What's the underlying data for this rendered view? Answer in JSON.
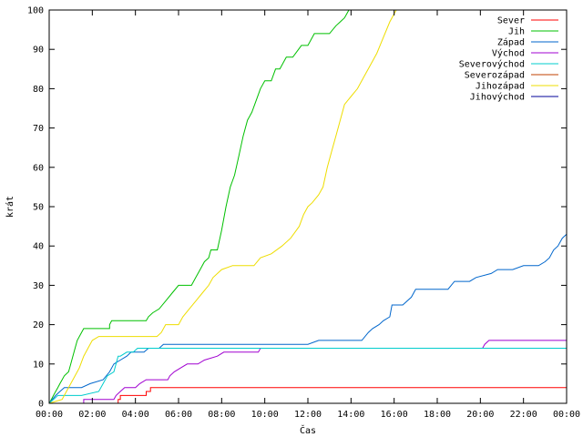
{
  "chart_data": {
    "type": "line",
    "xlabel": "Čas",
    "ylabel": "krát",
    "ylim": [
      0,
      100
    ],
    "xlim": [
      0,
      24
    ],
    "y_ticks": [
      0,
      10,
      20,
      30,
      40,
      50,
      60,
      70,
      80,
      90,
      100
    ],
    "x_ticks": [
      {
        "v": 0,
        "label": "00:00"
      },
      {
        "v": 2,
        "label": "02:00"
      },
      {
        "v": 4,
        "label": "04:00"
      },
      {
        "v": 6,
        "label": "06:00"
      },
      {
        "v": 8,
        "label": "08:00"
      },
      {
        "v": 10,
        "label": "10:00"
      },
      {
        "v": 12,
        "label": "12:00"
      },
      {
        "v": 14,
        "label": "14:00"
      },
      {
        "v": 16,
        "label": "16:00"
      },
      {
        "v": 18,
        "label": "18:00"
      },
      {
        "v": 20,
        "label": "20:00"
      },
      {
        "v": 22,
        "label": "22:00"
      },
      {
        "v": 24,
        "label": "00:00"
      }
    ],
    "grid": false,
    "legend_position": "top-right",
    "series": [
      {
        "name": "Sever",
        "color": "#ff0000",
        "points": [
          [
            0,
            0
          ],
          [
            3.2,
            0
          ],
          [
            3.2,
            1
          ],
          [
            3.3,
            1
          ],
          [
            3.3,
            2
          ],
          [
            4.5,
            2
          ],
          [
            4.5,
            3
          ],
          [
            4.7,
            3
          ],
          [
            4.7,
            4
          ],
          [
            24,
            4
          ]
        ]
      },
      {
        "name": "Jih",
        "color": "#00c000",
        "points": [
          [
            0,
            0
          ],
          [
            0.1,
            1
          ],
          [
            0.2,
            2
          ],
          [
            0.3,
            3
          ],
          [
            0.4,
            4
          ],
          [
            0.5,
            5
          ],
          [
            0.6,
            6
          ],
          [
            0.7,
            7
          ],
          [
            0.9,
            8
          ],
          [
            1.0,
            10
          ],
          [
            1.1,
            12
          ],
          [
            1.2,
            14
          ],
          [
            1.3,
            16
          ],
          [
            1.5,
            18
          ],
          [
            1.6,
            19
          ],
          [
            2.8,
            19
          ],
          [
            2.8,
            20
          ],
          [
            2.9,
            21
          ],
          [
            4.5,
            21
          ],
          [
            4.6,
            22
          ],
          [
            4.8,
            23
          ],
          [
            5.1,
            24
          ],
          [
            5.4,
            26
          ],
          [
            5.7,
            28
          ],
          [
            6.0,
            30
          ],
          [
            6.6,
            30
          ],
          [
            6.8,
            32
          ],
          [
            7.0,
            34
          ],
          [
            7.2,
            36
          ],
          [
            7.4,
            37
          ],
          [
            7.5,
            39
          ],
          [
            7.8,
            39
          ],
          [
            8.0,
            44
          ],
          [
            8.2,
            50
          ],
          [
            8.4,
            55
          ],
          [
            8.6,
            58
          ],
          [
            8.8,
            63
          ],
          [
            9.0,
            68
          ],
          [
            9.2,
            72
          ],
          [
            9.4,
            74
          ],
          [
            9.6,
            77
          ],
          [
            9.8,
            80
          ],
          [
            10.0,
            82
          ],
          [
            10.3,
            82
          ],
          [
            10.5,
            85
          ],
          [
            10.7,
            85
          ],
          [
            11.0,
            88
          ],
          [
            11.3,
            88
          ],
          [
            11.7,
            91
          ],
          [
            12.0,
            91
          ],
          [
            12.3,
            94
          ],
          [
            13.0,
            94
          ],
          [
            13.3,
            96
          ],
          [
            13.5,
            97
          ],
          [
            13.7,
            98
          ],
          [
            13.9,
            100
          ],
          [
            24,
            100
          ]
        ]
      },
      {
        "name": "Západ",
        "color": "#0066cc",
        "points": [
          [
            0,
            0
          ],
          [
            0.3,
            2
          ],
          [
            0.5,
            3
          ],
          [
            0.7,
            4
          ],
          [
            1.5,
            4
          ],
          [
            1.9,
            5
          ],
          [
            2.5,
            6
          ],
          [
            2.8,
            8
          ],
          [
            3.0,
            10
          ],
          [
            3.3,
            11
          ],
          [
            3.6,
            12
          ],
          [
            3.8,
            13
          ],
          [
            4.4,
            13
          ],
          [
            4.6,
            14
          ],
          [
            5.1,
            14
          ],
          [
            5.3,
            15
          ],
          [
            10.0,
            15
          ],
          [
            11.0,
            15
          ],
          [
            12.0,
            15
          ],
          [
            12.5,
            16
          ],
          [
            14.5,
            16
          ],
          [
            14.8,
            18
          ],
          [
            15.0,
            19
          ],
          [
            15.3,
            20
          ],
          [
            15.5,
            21
          ],
          [
            15.8,
            22
          ],
          [
            15.9,
            25
          ],
          [
            16.4,
            25
          ],
          [
            16.8,
            27
          ],
          [
            17.0,
            29
          ],
          [
            18.5,
            29
          ],
          [
            18.8,
            31
          ],
          [
            19.5,
            31
          ],
          [
            19.8,
            32
          ],
          [
            20.5,
            33
          ],
          [
            20.8,
            34
          ],
          [
            21.5,
            34
          ],
          [
            22.0,
            35
          ],
          [
            22.7,
            35
          ],
          [
            23.0,
            36
          ],
          [
            23.2,
            37
          ],
          [
            23.4,
            39
          ],
          [
            23.6,
            40
          ],
          [
            23.8,
            42
          ],
          [
            24,
            43
          ]
        ]
      },
      {
        "name": "Východ",
        "color": "#a000d0",
        "points": [
          [
            0,
            0
          ],
          [
            1.6,
            0
          ],
          [
            1.6,
            1
          ],
          [
            3.0,
            1
          ],
          [
            3.1,
            2
          ],
          [
            3.3,
            3
          ],
          [
            3.5,
            4
          ],
          [
            4.0,
            4
          ],
          [
            4.2,
            5
          ],
          [
            4.5,
            6
          ],
          [
            5.5,
            6
          ],
          [
            5.6,
            7
          ],
          [
            5.8,
            8
          ],
          [
            6.1,
            9
          ],
          [
            6.4,
            10
          ],
          [
            6.9,
            10
          ],
          [
            7.2,
            11
          ],
          [
            7.8,
            12
          ],
          [
            8.1,
            13
          ],
          [
            9.7,
            13
          ],
          [
            9.8,
            14
          ],
          [
            20.1,
            14
          ],
          [
            20.2,
            15
          ],
          [
            20.4,
            16
          ],
          [
            24,
            16
          ]
        ]
      },
      {
        "name": "Severovýchod",
        "color": "#00cccc",
        "points": [
          [
            0,
            0
          ],
          [
            0.2,
            1
          ],
          [
            0.4,
            2
          ],
          [
            1.5,
            2
          ],
          [
            2.3,
            3
          ],
          [
            2.5,
            5
          ],
          [
            2.7,
            7
          ],
          [
            3.0,
            8
          ],
          [
            3.2,
            12
          ],
          [
            3.3,
            12
          ],
          [
            3.6,
            13
          ],
          [
            3.9,
            13
          ],
          [
            4.1,
            14
          ],
          [
            24,
            14
          ]
        ]
      },
      {
        "name": "Severozápad",
        "color": "#c04000",
        "points": [
          [
            0,
            0
          ],
          [
            24,
            0
          ]
        ]
      },
      {
        "name": "Jihozápad",
        "color": "#eedd00",
        "points": [
          [
            0,
            0
          ],
          [
            0.6,
            1
          ],
          [
            0.8,
            3
          ],
          [
            1.0,
            5
          ],
          [
            1.2,
            7
          ],
          [
            1.4,
            9
          ],
          [
            1.6,
            12
          ],
          [
            1.8,
            14
          ],
          [
            2.0,
            16
          ],
          [
            2.3,
            17
          ],
          [
            5.0,
            17
          ],
          [
            5.2,
            18
          ],
          [
            5.4,
            20
          ],
          [
            6.0,
            20
          ],
          [
            6.2,
            22
          ],
          [
            6.5,
            24
          ],
          [
            6.8,
            26
          ],
          [
            7.1,
            28
          ],
          [
            7.4,
            30
          ],
          [
            7.6,
            32
          ],
          [
            8.0,
            34
          ],
          [
            8.5,
            35
          ],
          [
            9.5,
            35
          ],
          [
            9.8,
            37
          ],
          [
            10.3,
            38
          ],
          [
            10.8,
            40
          ],
          [
            11.2,
            42
          ],
          [
            11.6,
            45
          ],
          [
            11.8,
            48
          ],
          [
            12.0,
            50
          ],
          [
            12.2,
            51
          ],
          [
            12.5,
            53
          ],
          [
            12.7,
            55
          ],
          [
            12.9,
            60
          ],
          [
            13.1,
            64
          ],
          [
            13.3,
            68
          ],
          [
            13.5,
            72
          ],
          [
            13.7,
            76
          ],
          [
            14.0,
            78
          ],
          [
            14.3,
            80
          ],
          [
            14.6,
            83
          ],
          [
            14.9,
            86
          ],
          [
            15.2,
            89
          ],
          [
            15.5,
            93
          ],
          [
            15.8,
            97
          ],
          [
            16.1,
            100
          ],
          [
            24,
            100
          ]
        ]
      },
      {
        "name": "Jihovýchod",
        "color": "#000099",
        "points": [
          [
            0,
            0
          ],
          [
            24,
            0
          ]
        ]
      }
    ]
  }
}
